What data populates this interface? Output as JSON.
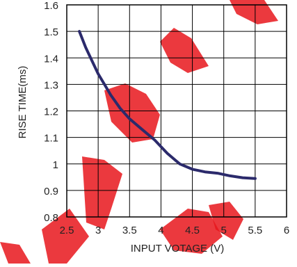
{
  "chart_data": {
    "type": "line",
    "xlabel": "INPUT VOTAGE (V)",
    "ylabel": "RISE TIME(ms)",
    "xlim": [
      2.5,
      6
    ],
    "ylim": [
      0.8,
      1.6
    ],
    "xticks": [
      2.5,
      3,
      3.5,
      4,
      4.5,
      5,
      5.5,
      6
    ],
    "yticks": [
      0.8,
      0.9,
      1,
      1.1,
      1.2,
      1.3,
      1.4,
      1.5,
      1.6
    ],
    "xtick_labels": [
      "2.5",
      "3",
      "3.5",
      "4",
      "4.5",
      "5",
      "5.5",
      "6"
    ],
    "ytick_labels": [
      "0.8",
      "0.9",
      "1",
      "1.1",
      "1.2",
      "1.3",
      "1.4",
      "1.5",
      "1.6"
    ],
    "grid": true,
    "series": [
      {
        "color": "#2b2a6b",
        "x": [
          2.7,
          2.8,
          2.9,
          3.0,
          3.1,
          3.2,
          3.35,
          3.5,
          3.7,
          3.9,
          4.1,
          4.3,
          4.5,
          4.7,
          4.9,
          5.1,
          5.3,
          5.5
        ],
        "y": [
          1.5,
          1.44,
          1.39,
          1.34,
          1.3,
          1.26,
          1.21,
          1.17,
          1.13,
          1.09,
          1.04,
          1.0,
          0.98,
          0.97,
          0.965,
          0.955,
          0.948,
          0.945
        ]
      }
    ]
  },
  "watermark": {
    "color": "#e8161c"
  }
}
